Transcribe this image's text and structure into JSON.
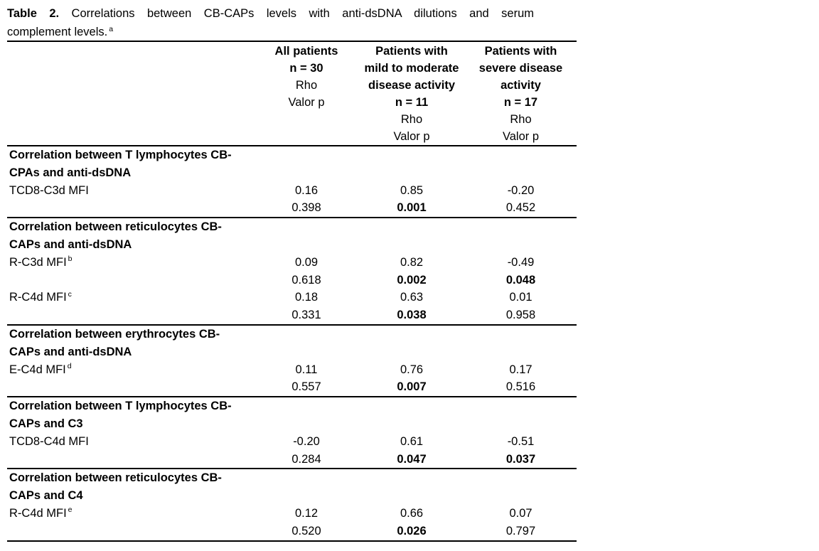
{
  "page": {
    "background": "#ffffff",
    "text_color": "#000000"
  },
  "title": {
    "label": "Table 2.",
    "rest": "Correlations between CB-CAPs levels with anti-dsDNA dilutions and serum",
    "line2": "complement levels.",
    "footnote_mark": "a"
  },
  "table": {
    "header": {
      "col_all": {
        "lines": [
          {
            "text": "All patients",
            "bold": true
          },
          {
            "text": "n = 30",
            "bold": true
          },
          {
            "text": "Rho",
            "bold": false
          },
          {
            "text": "Valor p",
            "bold": false
          }
        ]
      },
      "col_mild": {
        "lines": [
          {
            "text": "Patients with",
            "bold": true
          },
          {
            "text": "mild to moderate",
            "bold": true
          },
          {
            "text": "disease activity",
            "bold": true
          },
          {
            "text": "n = 11",
            "bold": true
          },
          {
            "text": "Rho",
            "bold": false
          },
          {
            "text": "Valor p",
            "bold": false
          }
        ]
      },
      "col_severe": {
        "lines": [
          {
            "text": "Patients with",
            "bold": true
          },
          {
            "text": "severe disease",
            "bold": true
          },
          {
            "text": "activity",
            "bold": true
          },
          {
            "text": "n = 17",
            "bold": true
          },
          {
            "text": "Rho",
            "bold": false
          },
          {
            "text": "Valor p",
            "bold": false
          }
        ]
      }
    },
    "sections": [
      {
        "header_line1": "Correlation between T lymphocytes CB-",
        "header_line2": "CPAs and anti-dsDNA",
        "rows": [
          {
            "label": "TCD8-C3d MFI",
            "sup": "",
            "rho": {
              "all": "0.16",
              "mild": "0.85",
              "severe": "-0.20"
            },
            "p": {
              "all": "0.398",
              "mild": "0.001",
              "severe": "0.452"
            },
            "p_bold": {
              "all": false,
              "mild": true,
              "severe": false
            }
          }
        ]
      },
      {
        "header_line1": "Correlation between reticulocytes CB-",
        "header_line2": "CAPs and anti-dsDNA",
        "rows": [
          {
            "label": "R-C3d MFI",
            "sup": "b",
            "rho": {
              "all": "0.09",
              "mild": "0.82",
              "severe": "-0.49"
            },
            "p": {
              "all": "0.618",
              "mild": "0.002",
              "severe": "0.048"
            },
            "p_bold": {
              "all": false,
              "mild": true,
              "severe": true
            }
          },
          {
            "label": "R-C4d MFI",
            "sup": "c",
            "rho": {
              "all": "0.18",
              "mild": "0.63",
              "severe": "0.01"
            },
            "p": {
              "all": "0.331",
              "mild": "0.038",
              "severe": "0.958"
            },
            "p_bold": {
              "all": false,
              "mild": true,
              "severe": false
            }
          }
        ]
      },
      {
        "header_line1": "Correlation between erythrocytes CB-",
        "header_line2": "CAPs and anti-dsDNA",
        "rows": [
          {
            "label": "E-C4d MFI",
            "sup": "d",
            "rho": {
              "all": "0.11",
              "mild": "0.76",
              "severe": "0.17"
            },
            "p": {
              "all": "0.557",
              "mild": "0.007",
              "severe": "0.516"
            },
            "p_bold": {
              "all": false,
              "mild": true,
              "severe": false
            }
          }
        ]
      },
      {
        "header_line1": "Correlation between T lymphocytes CB-",
        "header_line2": "CAPs and C3",
        "rows": [
          {
            "label": "TCD8-C4d MFI",
            "sup": "",
            "rho": {
              "all": "-0.20",
              "mild": "0.61",
              "severe": "-0.51"
            },
            "p": {
              "all": "0.284",
              "mild": "0.047",
              "severe": "0.037"
            },
            "p_bold": {
              "all": false,
              "mild": true,
              "severe": true
            }
          }
        ]
      },
      {
        "header_line1": "Correlation between reticulocytes CB-",
        "header_line2": "CAPs and C4",
        "rows": [
          {
            "label": "R-C4d MFI",
            "sup": "e",
            "rho": {
              "all": "0.12",
              "mild": "0.66",
              "severe": "0.07"
            },
            "p": {
              "all": "0.520",
              "mild": "0.026",
              "severe": "0.797"
            },
            "p_bold": {
              "all": false,
              "mild": true,
              "severe": false
            }
          }
        ]
      }
    ]
  }
}
